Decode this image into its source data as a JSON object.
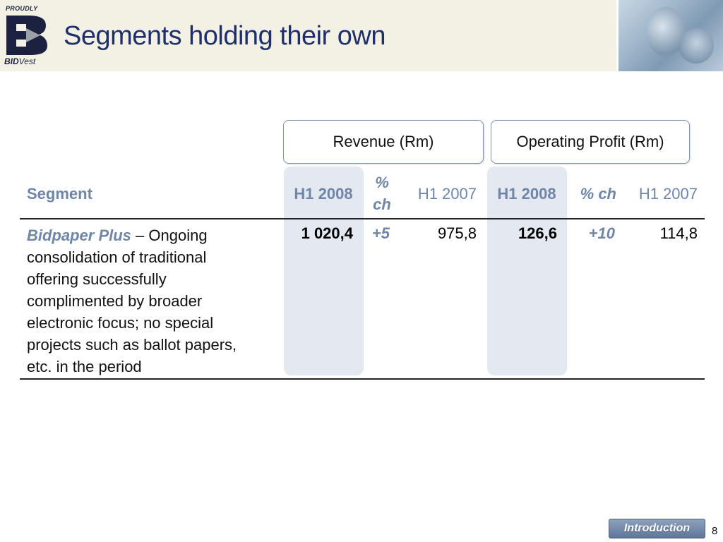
{
  "header": {
    "logo": {
      "top_text": "PROUDLY",
      "wordmark_bold": "BID",
      "wordmark_rest": "Vest",
      "icon": "bidvest-b-logo-icon"
    },
    "title": "Segments holding their own"
  },
  "table": {
    "group_headers": {
      "revenue": "Revenue (Rm)",
      "operating_profit": "Operating Profit (Rm)"
    },
    "columns": {
      "segment": "Segment",
      "rev_h1_2008": "H1 2008",
      "rev_pct_ch": "% ch",
      "rev_h1_2007": "H1 2007",
      "op_h1_2008": "H1 2008",
      "op_pct_ch": "% ch",
      "op_h1_2007": "H1 2007"
    },
    "rows": [
      {
        "segment_name": "Bidpaper Plus",
        "segment_desc": " – Ongoing consolidation of traditional offering successfully complimented by broader electronic focus; no special projects such as ballot papers, etc. in the period",
        "rev_h1_2008": "1 020,4",
        "rev_pct_ch": "+5",
        "rev_h1_2007": "975,8",
        "op_h1_2008": "126,6",
        "op_pct_ch": "+10",
        "op_h1_2007": "114,8"
      }
    ]
  },
  "footer": {
    "nav_button": "Introduction",
    "page_number": "8"
  },
  "colors": {
    "title": "#1f2f6e",
    "accent": "#6f86a6",
    "highlight_col": "#e3e8f1",
    "header_band": "#f3f1e3"
  }
}
